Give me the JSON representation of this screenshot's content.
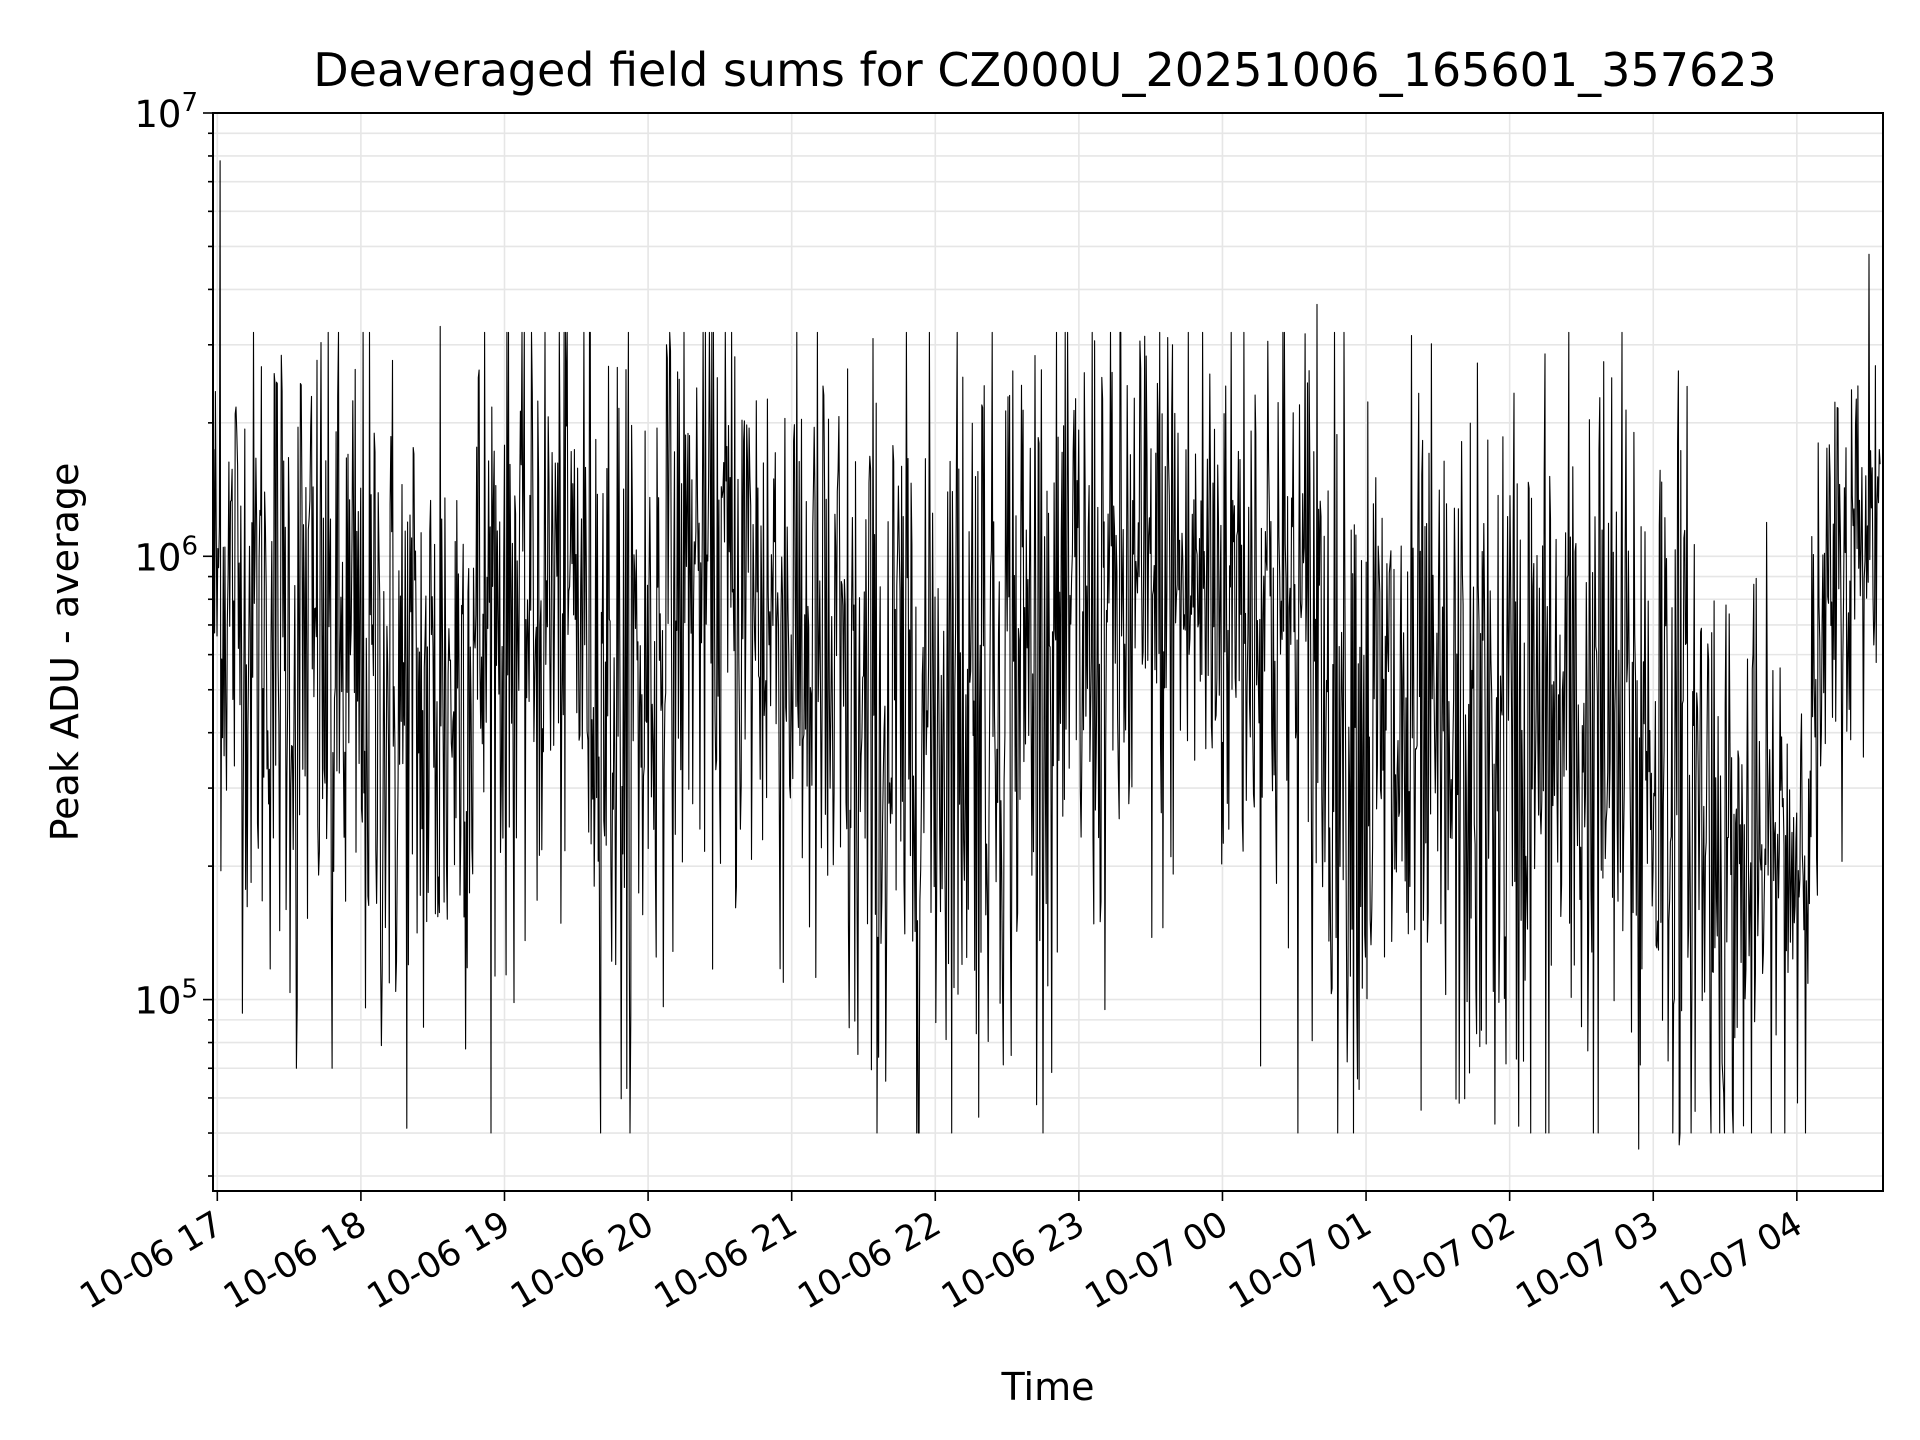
{
  "chart_data": {
    "type": "line",
    "title": "Deaveraged field sums for CZ000U_20251006_165601_357623",
    "xlabel": "Time",
    "ylabel": "Peak ADU - average",
    "yscale": "log",
    "ylim": [
      37000,
      10000000
    ],
    "xlim_hours": [
      -0.03,
      11.6
    ],
    "grid": true,
    "legend": "none",
    "line_color": "#000000",
    "x_ticks": [
      {
        "hour": 0,
        "label": "10-06 17"
      },
      {
        "hour": 1,
        "label": "10-06 18"
      },
      {
        "hour": 2,
        "label": "10-06 19"
      },
      {
        "hour": 3,
        "label": "10-06 20"
      },
      {
        "hour": 4,
        "label": "10-06 21"
      },
      {
        "hour": 5,
        "label": "10-06 22"
      },
      {
        "hour": 6,
        "label": "10-06 23"
      },
      {
        "hour": 7,
        "label": "10-07 00"
      },
      {
        "hour": 8,
        "label": "10-07 01"
      },
      {
        "hour": 9,
        "label": "10-07 02"
      },
      {
        "hour": 10,
        "label": "10-07 03"
      },
      {
        "hour": 11,
        "label": "10-07 04"
      }
    ],
    "y_ticks": [
      {
        "value": 100000,
        "base": "10",
        "exp": "5"
      },
      {
        "value": 1000000,
        "base": "10",
        "exp": "6"
      },
      {
        "value": 10000000,
        "base": "10",
        "exp": "7"
      }
    ],
    "series": [
      {
        "name": "Peak ADU - average",
        "x_start_hour": -0.03,
        "x_end_hour": 11.58,
        "n_points": 2100,
        "envelope": [
          {
            "hour": -0.03,
            "median": 900000,
            "spread": 0.3
          },
          {
            "hour": 0.3,
            "median": 700000,
            "spread": 0.38
          },
          {
            "hour": 1.0,
            "median": 520000,
            "spread": 0.42
          },
          {
            "hour": 1.5,
            "median": 400000,
            "spread": 0.4
          },
          {
            "hour": 1.9,
            "median": 750000,
            "spread": 0.4
          },
          {
            "hour": 2.5,
            "median": 850000,
            "spread": 0.36
          },
          {
            "hour": 2.85,
            "median": 420000,
            "spread": 0.45
          },
          {
            "hour": 3.3,
            "median": 950000,
            "spread": 0.33
          },
          {
            "hour": 4.0,
            "median": 720000,
            "spread": 0.4
          },
          {
            "hour": 4.5,
            "median": 330000,
            "spread": 0.45
          },
          {
            "hour": 5.3,
            "median": 550000,
            "spread": 0.45
          },
          {
            "hour": 6.0,
            "median": 650000,
            "spread": 0.4
          },
          {
            "hour": 6.7,
            "median": 850000,
            "spread": 0.35
          },
          {
            "hour": 7.3,
            "median": 850000,
            "spread": 0.38
          },
          {
            "hour": 8.0,
            "median": 380000,
            "spread": 0.42
          },
          {
            "hour": 8.6,
            "median": 320000,
            "spread": 0.4
          },
          {
            "hour": 9.4,
            "median": 380000,
            "spread": 0.45
          },
          {
            "hour": 10.1,
            "median": 380000,
            "spread": 0.45
          },
          {
            "hour": 10.6,
            "median": 180000,
            "spread": 0.32
          },
          {
            "hour": 11.0,
            "median": 210000,
            "spread": 0.28
          },
          {
            "hour": 11.25,
            "median": 800000,
            "spread": 0.25
          },
          {
            "hour": 11.58,
            "median": 1400000,
            "spread": 0.22
          }
        ],
        "notable_points": [
          {
            "hour": 0.02,
            "value": 7800000
          },
          {
            "hour": 11.5,
            "value": 4800000
          },
          {
            "hour": 7.66,
            "value": 3700000
          },
          {
            "hour": 1.55,
            "value": 3300000
          },
          {
            "hour": 3.13,
            "value": 3000000
          },
          {
            "hour": 6.65,
            "value": 3000000
          },
          {
            "hour": 9.9,
            "value": 46000
          },
          {
            "hour": 10.18,
            "value": 47000
          },
          {
            "hour": 2.85,
            "value": 63000
          },
          {
            "hour": 0.55,
            "value": 70000
          },
          {
            "hour": 0.8,
            "value": 70000
          }
        ]
      }
    ]
  }
}
